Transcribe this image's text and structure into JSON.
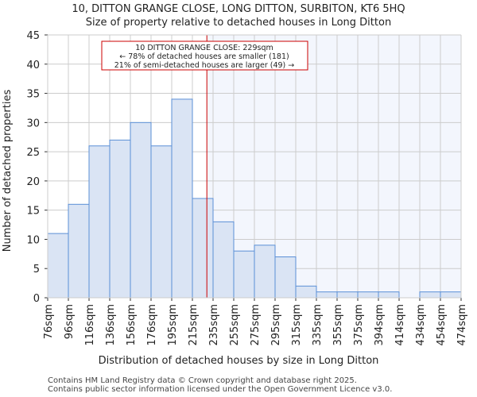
{
  "chart_data": {
    "type": "bar",
    "title": "10, DITTON GRANGE CLOSE, LONG DITTON, SURBITON, KT6 5HQ",
    "subtitle": "Size of property relative to detached houses in Long Ditton",
    "xlabel": "Distribution of detached houses by size in Long Ditton",
    "ylabel": "Number of detached properties",
    "bin_edges": [
      76,
      96,
      116,
      136,
      156,
      176,
      195,
      215,
      235,
      255,
      275,
      295,
      315,
      335,
      355,
      375,
      394,
      414,
      434,
      454,
      474
    ],
    "tick_labels": [
      "76sqm",
      "96sqm",
      "116sqm",
      "136sqm",
      "156sqm",
      "176sqm",
      "195sqm",
      "215sqm",
      "235sqm",
      "255sqm",
      "275sqm",
      "295sqm",
      "315sqm",
      "335sqm",
      "355sqm",
      "375sqm",
      "394sqm",
      "414sqm",
      "434sqm",
      "454sqm",
      "474sqm"
    ],
    "values": [
      11,
      16,
      26,
      27,
      30,
      26,
      34,
      17,
      13,
      8,
      9,
      7,
      2,
      1,
      1,
      1,
      1,
      0,
      1,
      1
    ],
    "ylim": [
      0,
      45
    ],
    "yticks": [
      0,
      5,
      10,
      15,
      20,
      25,
      30,
      35,
      40,
      45
    ],
    "grid": true,
    "marker_value": 229,
    "annotation": {
      "line1": "10 DITTON GRANGE CLOSE: 229sqm",
      "line2": "← 78% of detached houses are smaller (181)",
      "line3": "21% of semi-detached houses are larger (49) →"
    },
    "colors": {
      "bar_fill": "#dae4f4",
      "bar_edge": "#5b8fd6",
      "marker": "#cc0000",
      "highlight": "#f3f6fd",
      "grid": "#cccccc"
    }
  },
  "footer": {
    "line1": "Contains HM Land Registry data © Crown copyright and database right 2025.",
    "line2": "Contains public sector information licensed under the Open Government Licence v3.0."
  }
}
